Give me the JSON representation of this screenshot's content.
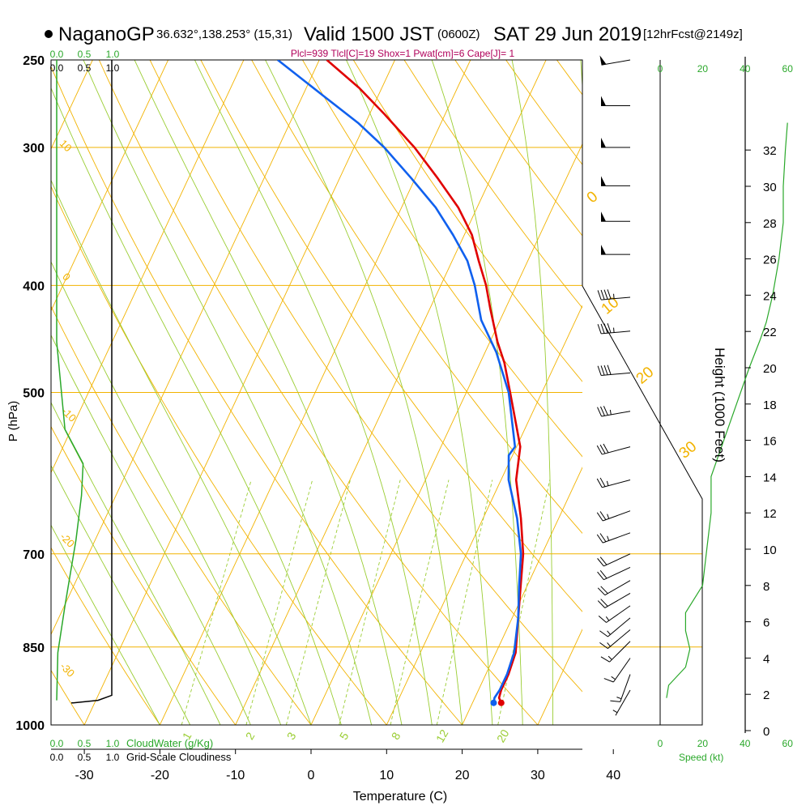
{
  "header": {
    "station": "NaganoGP",
    "coords": "36.632°,138.253° (15,31)",
    "valid": "Valid 1500 JST",
    "zulu": "(0600Z)",
    "date": "SAT 29 Jun 2019",
    "forecast": "[12hrFcst@2149z]",
    "indices": "Plcl=939 Tlcl[C]=19 Shox=1 Pwat[cm]=6 Cape[J]= 1"
  },
  "colors": {
    "temperature": "#e00000",
    "dewpoint": "#1060ee",
    "isotherm": "#f2b300",
    "dry_adiabat": "#f2b300",
    "moist_adiabat": "#9acd32",
    "mixing_ratio": "#9acd32",
    "cloud_green": "#2aa82a",
    "indices_text": "#b0005a",
    "black": "#000000"
  },
  "chart_data": {
    "type": "skew-t",
    "xlabel": "Temperature (C)",
    "ylabel": "P (hPa)",
    "y2label": "Height (1000 Feet)",
    "x_ticks": [
      -30,
      -20,
      -10,
      0,
      10,
      20,
      30,
      40
    ],
    "x_tick_labels": [
      "-30",
      "-20",
      "-10",
      "0",
      "10",
      "20",
      "30",
      "40"
    ],
    "p_ticks": [
      250,
      300,
      400,
      500,
      700,
      850,
      1000
    ],
    "p_tick_labels": [
      "250",
      "300",
      "400",
      "500",
      "700",
      "850",
      "1000"
    ],
    "plim": [
      250,
      1000
    ],
    "xlim": [
      -35,
      36
    ],
    "height_ticks": [
      0,
      2,
      4,
      6,
      8,
      10,
      12,
      14,
      16,
      18,
      20,
      22,
      24,
      26,
      28,
      30,
      32
    ],
    "height_tick_labels": [
      "0",
      "2",
      "4",
      "6",
      "8",
      "10",
      "12",
      "14",
      "16",
      "18",
      "20",
      "22",
      "24",
      "26",
      "28",
      "30",
      "32"
    ],
    "wind_speed_ticks": [
      0,
      20,
      40,
      60
    ],
    "wind_speed_tick_labels": [
      "0",
      "20",
      "40",
      "60"
    ],
    "wind_speed_label": "Speed (kt)",
    "cloud_ticks": [
      "0.0",
      "0.5",
      "1.0"
    ],
    "cloudwater_label": "CloudWater (g/Kg)",
    "cloudiness_label": "Grid-Scale Cloudiness",
    "isotherm_labels": [
      "0",
      "10",
      "20",
      "30"
    ],
    "dry_adiabat_labels": [
      "10",
      "0",
      "-10",
      "-20",
      "-30"
    ],
    "mixing_ratio_labels": [
      "1",
      "2",
      "3",
      "5",
      "8",
      "12",
      "20"
    ],
    "series": [
      {
        "name": "Temperature",
        "points": [
          {
            "p": 955,
            "t": 23.8
          },
          {
            "p": 945,
            "t": 23.2
          },
          {
            "p": 930,
            "t": 23.0
          },
          {
            "p": 900,
            "t": 23.0
          },
          {
            "p": 860,
            "t": 22.6
          },
          {
            "p": 800,
            "t": 20.8
          },
          {
            "p": 750,
            "t": 19.2
          },
          {
            "p": 700,
            "t": 17.5
          },
          {
            "p": 650,
            "t": 15.0
          },
          {
            "p": 600,
            "t": 12.0
          },
          {
            "p": 560,
            "t": 10.5
          },
          {
            "p": 500,
            "t": 5.8
          },
          {
            "p": 470,
            "t": 3.2
          },
          {
            "p": 450,
            "t": 1.0
          },
          {
            "p": 420,
            "t": -2.0
          },
          {
            "p": 400,
            "t": -4.0
          },
          {
            "p": 380,
            "t": -6.5
          },
          {
            "p": 360,
            "t": -9.0
          },
          {
            "p": 340,
            "t": -12.5
          },
          {
            "p": 320,
            "t": -17.0
          },
          {
            "p": 300,
            "t": -22.0
          },
          {
            "p": 280,
            "t": -28.0
          },
          {
            "p": 265,
            "t": -33.0
          },
          {
            "p": 250,
            "t": -39.0
          }
        ]
      },
      {
        "name": "Dewpoint",
        "points": [
          {
            "p": 955,
            "t": 22.8
          },
          {
            "p": 945,
            "t": 22.6
          },
          {
            "p": 930,
            "t": 22.8
          },
          {
            "p": 900,
            "t": 22.8
          },
          {
            "p": 860,
            "t": 22.4
          },
          {
            "p": 800,
            "t": 20.8
          },
          {
            "p": 750,
            "t": 19.0
          },
          {
            "p": 700,
            "t": 17.2
          },
          {
            "p": 650,
            "t": 14.5
          },
          {
            "p": 600,
            "t": 11.0
          },
          {
            "p": 570,
            "t": 9.5
          },
          {
            "p": 560,
            "t": 9.8
          },
          {
            "p": 500,
            "t": 5.6
          },
          {
            "p": 460,
            "t": 1.5
          },
          {
            "p": 430,
            "t": -2.5
          },
          {
            "p": 400,
            "t": -5.5
          },
          {
            "p": 380,
            "t": -8.0
          },
          {
            "p": 360,
            "t": -11.5
          },
          {
            "p": 340,
            "t": -15.5
          },
          {
            "p": 320,
            "t": -20.5
          },
          {
            "p": 300,
            "t": -26.0
          },
          {
            "p": 285,
            "t": -31.0
          },
          {
            "p": 270,
            "t": -37.0
          },
          {
            "p": 250,
            "t": -45.5
          }
        ]
      },
      {
        "name": "Cloud water",
        "points": [
          {
            "p": 250,
            "v": 0.0
          },
          {
            "p": 450,
            "v": 0.0
          },
          {
            "p": 540,
            "v": 0.15
          },
          {
            "p": 580,
            "v": 0.48
          },
          {
            "p": 620,
            "v": 0.45
          },
          {
            "p": 680,
            "v": 0.35
          },
          {
            "p": 780,
            "v": 0.15
          },
          {
            "p": 860,
            "v": 0.02
          },
          {
            "p": 950,
            "v": 0.0
          }
        ]
      },
      {
        "name": "Cloudiness",
        "points": [
          {
            "p": 250,
            "v": 1.0
          },
          {
            "p": 940,
            "v": 1.0
          },
          {
            "p": 950,
            "v": 0.75
          },
          {
            "p": 955,
            "v": 0.3
          }
        ]
      },
      {
        "name": "Wind speed",
        "points": [
          {
            "h": 1.8,
            "v": 3
          },
          {
            "h": 2.5,
            "v": 4
          },
          {
            "h": 3.5,
            "v": 12
          },
          {
            "h": 4.5,
            "v": 14
          },
          {
            "h": 5.5,
            "v": 12
          },
          {
            "h": 6.5,
            "v": 12
          },
          {
            "h": 8,
            "v": 20
          },
          {
            "h": 10,
            "v": 22
          },
          {
            "h": 12,
            "v": 24
          },
          {
            "h": 14,
            "v": 24
          },
          {
            "h": 16,
            "v": 30
          },
          {
            "h": 18,
            "v": 36
          },
          {
            "h": 20,
            "v": 42
          },
          {
            "h": 21.5,
            "v": 47
          },
          {
            "h": 22.5,
            "v": 50
          },
          {
            "h": 24,
            "v": 53
          },
          {
            "h": 26,
            "v": 56
          },
          {
            "h": 28,
            "v": 58
          },
          {
            "h": 30,
            "v": 58
          },
          {
            "h": 32,
            "v": 59
          },
          {
            "h": 33.5,
            "v": 60
          }
        ]
      }
    ],
    "wind_barbs": [
      {
        "p": 250,
        "dir": 260,
        "speed": 50
      },
      {
        "p": 275,
        "dir": 270,
        "speed": 50
      },
      {
        "p": 300,
        "dir": 270,
        "speed": 50
      },
      {
        "p": 325,
        "dir": 270,
        "speed": 50
      },
      {
        "p": 350,
        "dir": 270,
        "speed": 50
      },
      {
        "p": 375,
        "dir": 270,
        "speed": 50
      },
      {
        "p": 410,
        "dir": 265,
        "speed": 45
      },
      {
        "p": 440,
        "dir": 265,
        "speed": 45
      },
      {
        "p": 480,
        "dir": 265,
        "speed": 40
      },
      {
        "p": 520,
        "dir": 260,
        "speed": 35
      },
      {
        "p": 560,
        "dir": 255,
        "speed": 30
      },
      {
        "p": 600,
        "dir": 255,
        "speed": 25
      },
      {
        "p": 640,
        "dir": 250,
        "speed": 25
      },
      {
        "p": 670,
        "dir": 250,
        "speed": 25
      },
      {
        "p": 700,
        "dir": 245,
        "speed": 20
      },
      {
        "p": 720,
        "dir": 245,
        "speed": 20
      },
      {
        "p": 740,
        "dir": 240,
        "speed": 20
      },
      {
        "p": 760,
        "dir": 240,
        "speed": 20
      },
      {
        "p": 780,
        "dir": 235,
        "speed": 15
      },
      {
        "p": 800,
        "dir": 230,
        "speed": 15
      },
      {
        "p": 820,
        "dir": 230,
        "speed": 15
      },
      {
        "p": 840,
        "dir": 225,
        "speed": 15
      },
      {
        "p": 870,
        "dir": 215,
        "speed": 15
      },
      {
        "p": 900,
        "dir": 200,
        "speed": 15
      },
      {
        "p": 930,
        "dir": 210,
        "speed": 5
      }
    ]
  }
}
